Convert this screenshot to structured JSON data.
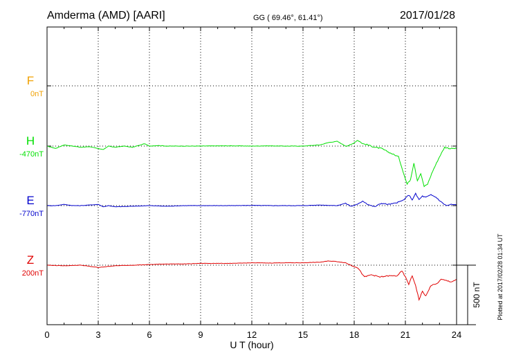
{
  "header": {
    "station": "Amderma (AMD)  [AARI]",
    "coords": "GG ( 69.46°,  61.41°)",
    "date": "2017/01/28"
  },
  "side_note": "Plotted at 2017/02/28 01:34 UT",
  "scale_label": "500 nT",
  "colors": {
    "F": "#f0a000",
    "H": "#00e000",
    "E": "#0000cc",
    "Z": "#e00000",
    "axis": "#000000",
    "grid": "#000000"
  },
  "chart_data": {
    "type": "line",
    "xlabel": "U T (hour)",
    "xlim": [
      0,
      24
    ],
    "x_ticks": [
      "0",
      "3",
      "6",
      "9",
      "12",
      "15",
      "18",
      "21",
      "24"
    ],
    "grid": true,
    "components": [
      {
        "name": "F",
        "baseline_label": "0nT",
        "baseline": 0,
        "color_key": "F"
      },
      {
        "name": "H",
        "baseline_label": "-470nT",
        "baseline": -470,
        "color_key": "H"
      },
      {
        "name": "E",
        "baseline_label": "-770nT",
        "baseline": -770,
        "color_key": "E"
      },
      {
        "name": "Z",
        "baseline_label": "200nT",
        "baseline": 200,
        "color_key": "Z"
      }
    ],
    "series": [
      {
        "name": "H",
        "x": [
          0,
          0.5,
          1,
          1.5,
          2,
          2.5,
          3,
          3.3,
          3.6,
          4,
          4.5,
          5,
          5.5,
          5.7,
          6,
          6.5,
          7,
          8,
          9,
          10,
          11,
          12,
          13,
          14,
          15,
          16,
          16.5,
          17,
          17.5,
          17.8,
          18.2,
          18.5,
          18.8,
          19.2,
          19.6,
          20,
          20.3,
          20.6,
          20.9,
          21.1,
          21.3,
          21.5,
          21.7,
          21.9,
          22.1,
          22.3,
          22.6,
          23,
          23.3,
          23.6,
          24
        ],
        "y": [
          -470,
          -490,
          -460,
          -470,
          -480,
          -475,
          -490,
          -500,
          -470,
          -480,
          -470,
          -480,
          -460,
          -450,
          -470,
          -465,
          -470,
          -470,
          -470,
          -468,
          -468,
          -470,
          -468,
          -470,
          -470,
          -460,
          -440,
          -430,
          -470,
          -460,
          -420,
          -450,
          -460,
          -480,
          -490,
          -520,
          -540,
          -560,
          -700,
          -790,
          -750,
          -610,
          -760,
          -700,
          -810,
          -790,
          -680,
          -560,
          -480,
          -490,
          -490
        ]
      },
      {
        "name": "E",
        "x": [
          0,
          0.5,
          1,
          1.5,
          2,
          2.5,
          3,
          3.3,
          3.6,
          4,
          5,
          6,
          7,
          8,
          9,
          10,
          11,
          12,
          13,
          14,
          15,
          16,
          17,
          17.5,
          17.8,
          18.2,
          18.5,
          18.8,
          19.2,
          19.6,
          20,
          20.4,
          20.8,
          21,
          21.2,
          21.4,
          21.6,
          21.8,
          22,
          22.2,
          22.5,
          22.8,
          23.1,
          23.4,
          23.7,
          24
        ],
        "y": [
          -770,
          -770,
          -760,
          -770,
          -770,
          -765,
          -760,
          -780,
          -770,
          -780,
          -775,
          -770,
          -775,
          -770,
          -770,
          -770,
          -770,
          -768,
          -770,
          -770,
          -770,
          -765,
          -770,
          -750,
          -775,
          -760,
          -730,
          -760,
          -780,
          -750,
          -760,
          -750,
          -730,
          -710,
          -680,
          -720,
          -670,
          -720,
          -690,
          -700,
          -680,
          -700,
          -740,
          -770,
          -760,
          -765
        ]
      },
      {
        "name": "Z",
        "x": [
          0,
          1,
          2,
          2.5,
          3,
          3.3,
          3.6,
          4,
          5,
          6,
          7,
          8,
          9,
          10,
          11,
          12,
          13,
          14,
          15,
          16,
          16.5,
          17,
          17.5,
          17.8,
          18.2,
          18.6,
          19,
          19.5,
          20,
          20.5,
          20.8,
          21,
          21.2,
          21.4,
          21.6,
          21.8,
          22,
          22.2,
          22.5,
          22.8,
          23.1,
          23.4,
          23.7,
          24
        ],
        "y": [
          200,
          195,
          200,
          190,
          180,
          185,
          190,
          195,
          200,
          205,
          210,
          210,
          215,
          215,
          215,
          220,
          218,
          220,
          220,
          225,
          235,
          230,
          220,
          200,
          180,
          100,
          120,
          100,
          110,
          110,
          150,
          100,
          40,
          110,
          30,
          -90,
          -20,
          -60,
          30,
          40,
          80,
          70,
          60,
          80
        ]
      }
    ]
  }
}
